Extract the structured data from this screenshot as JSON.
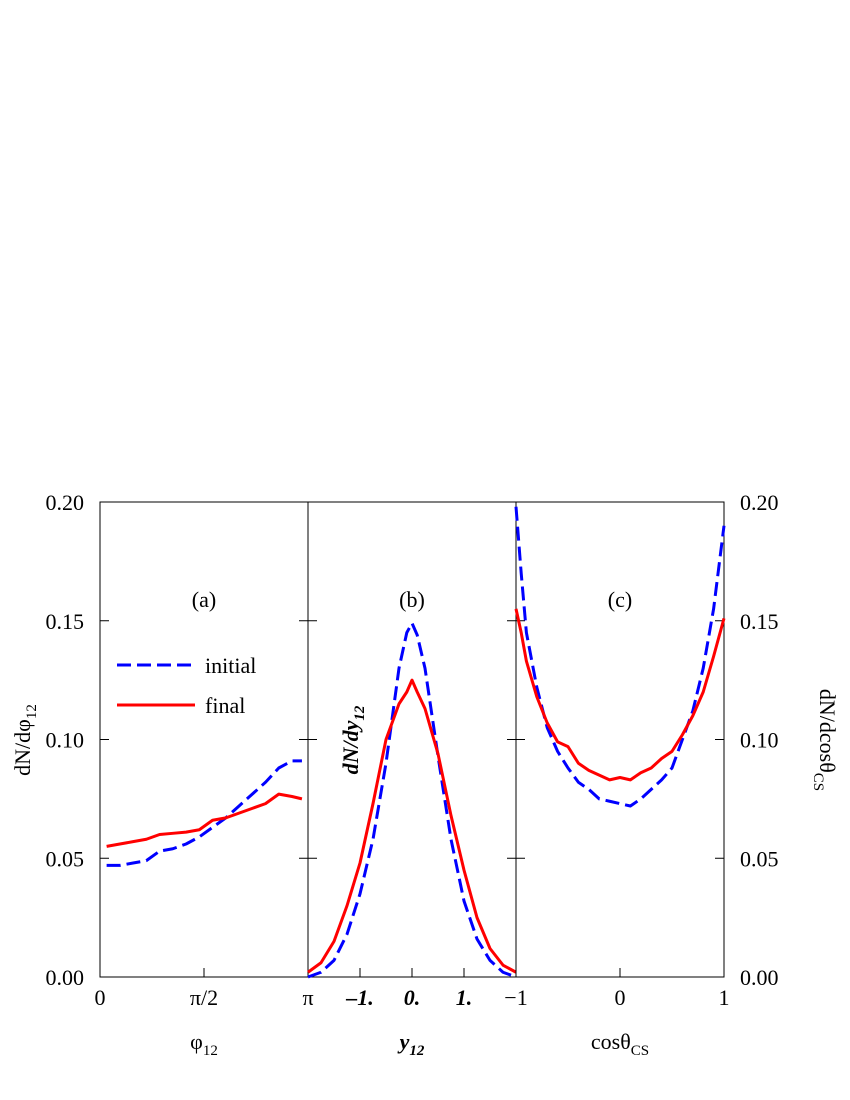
{
  "chart_data": [
    {
      "type": "line",
      "annotation": "(a)",
      "xlabel": "φ",
      "xlabel_subscript": "12",
      "ylabel": "dN/dφ",
      "ylabel_subscript": "12",
      "xlim": [
        0,
        3.1416
      ],
      "xticks": [
        0,
        {
          "value": 1.5708,
          "label": "π/2"
        },
        {
          "value": 3.1416,
          "label": "π"
        }
      ],
      "ylim": [
        0,
        0.2
      ],
      "yticks": [
        {
          "value": 0,
          "label": "0.00"
        },
        {
          "value": 0.05,
          "label": "0.05"
        },
        {
          "value": 0.1,
          "label": "0.10"
        },
        {
          "value": 0.15,
          "label": "0.15"
        },
        {
          "value": 0.2,
          "label": "0.20"
        }
      ],
      "legend": "center-left",
      "x": [
        0.1,
        0.3,
        0.5,
        0.7,
        0.9,
        1.1,
        1.3,
        1.5,
        1.7,
        1.9,
        2.1,
        2.3,
        2.5,
        2.7,
        2.9,
        3.05
      ],
      "series": [
        {
          "name": "initial",
          "color": "#0000ff",
          "dashed": true,
          "values": [
            0.047,
            0.047,
            0.048,
            0.049,
            0.053,
            0.054,
            0.056,
            0.059,
            0.063,
            0.067,
            0.072,
            0.077,
            0.082,
            0.088,
            0.091,
            0.091
          ]
        },
        {
          "name": "final",
          "color": "#ff0000",
          "dashed": false,
          "values": [
            0.055,
            0.056,
            0.057,
            0.058,
            0.06,
            0.0605,
            0.061,
            0.062,
            0.066,
            0.067,
            0.069,
            0.071,
            0.073,
            0.077,
            0.076,
            0.075
          ]
        }
      ]
    },
    {
      "type": "line",
      "annotation": "(b)",
      "xlabel": "y",
      "xlabel_subscript": "12",
      "ylabel": "dN/dy",
      "ylabel_subscript": "12",
      "xlim": [
        -2,
        2
      ],
      "xticks": [
        {
          "value": -1,
          "label": "–1."
        },
        {
          "value": 0,
          "label": "0."
        },
        {
          "value": 1,
          "label": "1."
        }
      ],
      "ylim": [
        0,
        0.2
      ],
      "yticks": [
        0,
        0.05,
        0.1,
        0.15,
        0.2
      ],
      "x": [
        -2,
        -1.75,
        -1.5,
        -1.25,
        -1,
        -0.75,
        -0.5,
        -0.25,
        -0.1,
        0,
        0.1,
        0.25,
        0.5,
        0.75,
        1,
        1.25,
        1.5,
        1.75,
        2
      ],
      "series": [
        {
          "name": "initial",
          "color": "#0000ff",
          "dashed": true,
          "values": [
            0,
            0.002,
            0.007,
            0.018,
            0.035,
            0.058,
            0.09,
            0.13,
            0.145,
            0.149,
            0.144,
            0.13,
            0.093,
            0.058,
            0.032,
            0.016,
            0.007,
            0.002,
            0
          ]
        },
        {
          "name": "final",
          "color": "#ff0000",
          "dashed": false,
          "values": [
            0.002,
            0.006,
            0.015,
            0.03,
            0.048,
            0.073,
            0.1,
            0.115,
            0.12,
            0.125,
            0.12,
            0.113,
            0.094,
            0.068,
            0.045,
            0.025,
            0.012,
            0.005,
            0.002
          ]
        }
      ]
    },
    {
      "type": "line",
      "annotation": "(c)",
      "xlabel": "cosθ",
      "xlabel_subscript": "CS",
      "ylabel": "dN/dcosθ",
      "ylabel_subscript": "CS",
      "xlim": [
        -1,
        1
      ],
      "xticks": [
        {
          "value": -1,
          "label": "−1"
        },
        0,
        1
      ],
      "ylim": [
        0,
        0.2
      ],
      "yticks": [
        {
          "value": 0,
          "label": "0.00"
        },
        {
          "value": 0.05,
          "label": "0.05"
        },
        {
          "value": 0.1,
          "label": "0.10"
        },
        {
          "value": 0.15,
          "label": "0.15"
        },
        {
          "value": 0.2,
          "label": "0.20"
        }
      ],
      "x": [
        -1,
        -0.95,
        -0.9,
        -0.8,
        -0.7,
        -0.6,
        -0.5,
        -0.4,
        -0.3,
        -0.2,
        -0.1,
        0,
        0.1,
        0.2,
        0.3,
        0.4,
        0.5,
        0.6,
        0.7,
        0.8,
        0.9,
        1
      ],
      "series": [
        {
          "name": "initial",
          "color": "#0000ff",
          "dashed": true,
          "values": [
            0.198,
            0.17,
            0.145,
            0.122,
            0.105,
            0.095,
            0.088,
            0.082,
            0.079,
            0.075,
            0.074,
            0.073,
            0.072,
            0.075,
            0.079,
            0.083,
            0.088,
            0.1,
            0.112,
            0.13,
            0.155,
            0.19
          ]
        },
        {
          "name": "final",
          "color": "#ff0000",
          "dashed": false,
          "values": [
            0.155,
            0.145,
            0.133,
            0.118,
            0.107,
            0.099,
            0.097,
            0.09,
            0.087,
            0.085,
            0.083,
            0.084,
            0.083,
            0.086,
            0.088,
            0.092,
            0.095,
            0.102,
            0.11,
            0.12,
            0.135,
            0.151
          ]
        }
      ]
    }
  ]
}
